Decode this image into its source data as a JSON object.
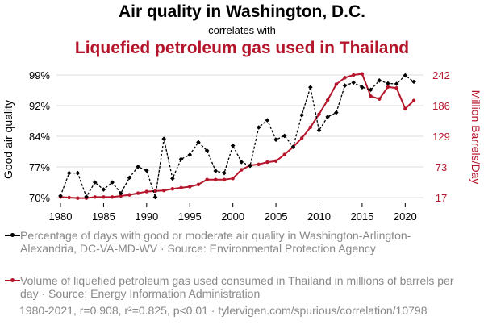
{
  "title_line1": "Air quality in Washington, D.C.",
  "title_line2": "correlates with",
  "title_line3": "Liquefied petroleum gas used in Thailand",
  "legend": {
    "series1": "Percentage of days with good or moderate air quality in Washington-Arlington-Alexandria, DC-VA-MD-WV · Source: Environmental Protection Agency",
    "series2": "Volume of liquefied petroleum gas used consumed in Thailand in millions of barrels per day · Source: Energy Information Administration"
  },
  "footer": "1980-2021, r=0.908, r²=0.825, p<0.01 · tylervigen.com/spurious/correlation/10798",
  "colors": {
    "series1": "#000000",
    "series2": "#b5152b",
    "grid": "#dddddd"
  },
  "chart_data": {
    "type": "line",
    "x": [
      1980,
      1981,
      1982,
      1983,
      1984,
      1985,
      1986,
      1987,
      1988,
      1989,
      1990,
      1991,
      1992,
      1993,
      1994,
      1995,
      1996,
      1997,
      1998,
      1999,
      2000,
      2001,
      2002,
      2003,
      2004,
      2005,
      2006,
      2007,
      2008,
      2009,
      2010,
      2011,
      2012,
      2013,
      2014,
      2015,
      2016,
      2017,
      2018,
      2019,
      2020,
      2021
    ],
    "xticks": [
      1980,
      1985,
      1990,
      1995,
      2000,
      2005,
      2010,
      2015,
      2020
    ],
    "y_left": {
      "label": "Good air quality",
      "ticks": [
        "70%",
        "77%",
        "84%",
        "92%",
        "99%"
      ],
      "range": [
        70,
        99
      ]
    },
    "y_right": {
      "label": "Million Barrels/Day",
      "ticks": [
        "17",
        "73",
        "129",
        "186",
        "242"
      ],
      "range": [
        17,
        242
      ]
    },
    "series": [
      {
        "axis": "left",
        "values": [
          70.4,
          75.8,
          75.8,
          70.2,
          73.6,
          71.9,
          73.6,
          71.0,
          74.7,
          77.3,
          76.4,
          70.1,
          83.9,
          74.5,
          79.1,
          80.1,
          83.1,
          81.1,
          76.3,
          75.8,
          82.3,
          78.4,
          77.5,
          86.6,
          88.3,
          83.7,
          84.6,
          82.0,
          89.5,
          96.1,
          85.9,
          89.1,
          90.1,
          96.5,
          97.2,
          96.1,
          95.5,
          97.7,
          97.0,
          96.9,
          98.9,
          97.4
        ]
      },
      {
        "axis": "right",
        "values": [
          18,
          17,
          16,
          16,
          18,
          18,
          18,
          20,
          22,
          25,
          28,
          29,
          30,
          33,
          35,
          37,
          41,
          50,
          50,
          50,
          52,
          68,
          76,
          78,
          82,
          84,
          96,
          110,
          126,
          146,
          170,
          196,
          225,
          237,
          242,
          244,
          203,
          198,
          220,
          218,
          180,
          195
        ]
      }
    ],
    "grid": true
  }
}
